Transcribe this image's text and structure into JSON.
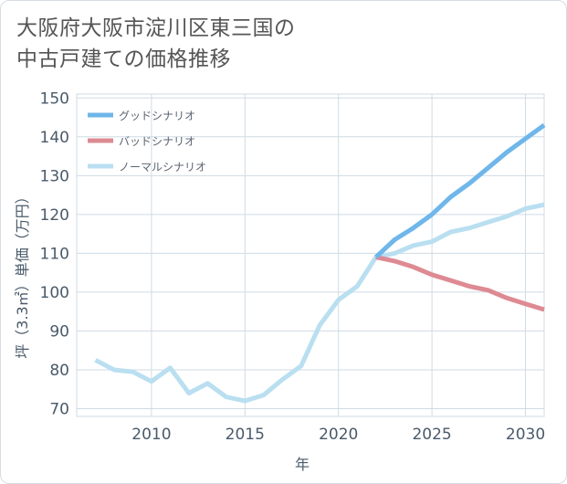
{
  "title_lines": [
    "大阪府大阪市淀川区東三国の",
    "中古戸建ての価格推移"
  ],
  "chart_data": {
    "type": "line",
    "xlabel": "年",
    "ylabel": "坪（3.3㎡）単価（万円）",
    "xlim": [
      2006,
      2031
    ],
    "ylim": [
      68,
      151
    ],
    "x_ticks": [
      2010,
      2015,
      2020,
      2025,
      2030
    ],
    "y_ticks": [
      70,
      80,
      90,
      100,
      110,
      120,
      130,
      140,
      150
    ],
    "grid": true,
    "legend_position": "top-left",
    "series": [
      {
        "name": "グッドシナリオ",
        "color": "#6fb6ea",
        "x": [
          2022,
          2023,
          2024,
          2025,
          2026,
          2027,
          2028,
          2029,
          2030,
          2031
        ],
        "y": [
          109,
          113.5,
          116.5,
          120,
          124.5,
          128,
          132,
          136,
          139.5,
          143
        ]
      },
      {
        "name": "バッドシナリオ",
        "color": "#de8a93",
        "x": [
          2022,
          2023,
          2024,
          2025,
          2026,
          2027,
          2028,
          2029,
          2030,
          2031
        ],
        "y": [
          109,
          108,
          106.5,
          104.5,
          103,
          101.5,
          100.5,
          98.5,
          97,
          95.5
        ]
      },
      {
        "name": "ノーマルシナリオ",
        "color": "#b9dff0",
        "x": [
          2007,
          2008,
          2009,
          2010,
          2011,
          2012,
          2013,
          2014,
          2015,
          2016,
          2017,
          2018,
          2019,
          2020,
          2021,
          2022,
          2023,
          2024,
          2025,
          2026,
          2027,
          2028,
          2029,
          2030,
          2031
        ],
        "y": [
          82.5,
          80,
          79.5,
          77,
          80.5,
          74,
          76.5,
          73,
          72,
          73.5,
          77.5,
          81,
          91.5,
          98,
          101.5,
          109,
          110,
          112,
          113,
          115.5,
          116.5,
          118,
          119.5,
          121.5,
          122.5
        ]
      }
    ]
  }
}
